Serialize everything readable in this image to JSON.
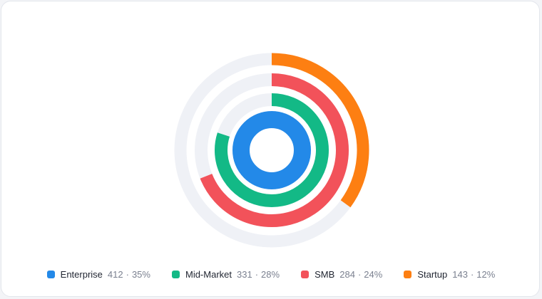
{
  "chart_data": {
    "type": "radial-bar",
    "series": [
      {
        "name": "Enterprise",
        "value": 412,
        "percent": "35%",
        "share": 1.0,
        "color": "#2389e8"
      },
      {
        "name": "Mid-Market",
        "value": 331,
        "percent": "28%",
        "share": 0.8,
        "color": "#13b986"
      },
      {
        "name": "SMB",
        "value": 284,
        "percent": "24%",
        "share": 0.69,
        "color": "#f2525a"
      },
      {
        "name": "Startup",
        "value": 143,
        "percent": "12%",
        "share": 0.35,
        "color": "#fd7f12"
      }
    ],
    "track_color": "#eff1f6",
    "grid": false,
    "legend_position": "bottom",
    "separator": "·"
  }
}
